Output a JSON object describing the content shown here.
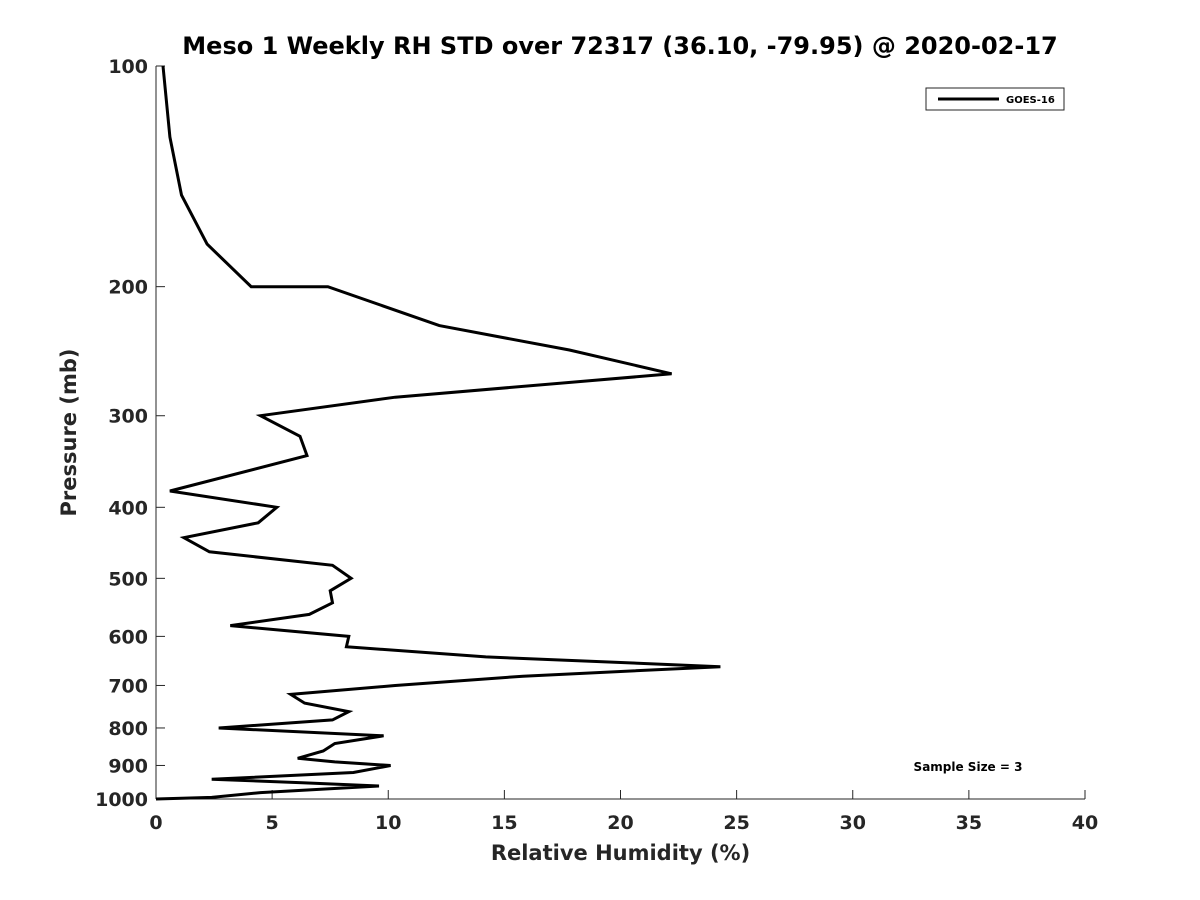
{
  "chart_data": {
    "type": "line",
    "title": "Meso 1 Weekly RH STD over 72317 (36.10, -79.95) @ 2020-02-17",
    "xlabel": "Relative Humidity (%)",
    "ylabel": "Pressure (mb)",
    "xlim": [
      0,
      40
    ],
    "ylim": [
      100,
      1000
    ],
    "y_scale": "log",
    "y_reversed": true,
    "x_ticks": [
      0,
      5,
      10,
      15,
      20,
      25,
      30,
      35,
      40
    ],
    "y_ticks": [
      100,
      200,
      300,
      400,
      500,
      600,
      700,
      800,
      900,
      1000
    ],
    "grid": false,
    "legend_position": "top-right",
    "annotation": "Sample Size = 3",
    "series": [
      {
        "name": "GOES-16",
        "color": "#000000",
        "points": [
          [
            0.3,
            100
          ],
          [
            0.6,
            125
          ],
          [
            1.1,
            150
          ],
          [
            2.2,
            175
          ],
          [
            4.1,
            200
          ],
          [
            7.4,
            200
          ],
          [
            12.2,
            226
          ],
          [
            17.8,
            244
          ],
          [
            22.2,
            263
          ],
          [
            10.3,
            283
          ],
          [
            4.5,
            300
          ],
          [
            6.2,
            320
          ],
          [
            6.5,
            340
          ],
          [
            0.6,
            380
          ],
          [
            5.2,
            400
          ],
          [
            4.4,
            420
          ],
          [
            1.2,
            440
          ],
          [
            2.3,
            460
          ],
          [
            7.6,
            480
          ],
          [
            8.4,
            500
          ],
          [
            7.5,
            520
          ],
          [
            7.6,
            540
          ],
          [
            6.6,
            560
          ],
          [
            3.2,
            580
          ],
          [
            8.3,
            600
          ],
          [
            8.2,
            620
          ],
          [
            14.2,
            640
          ],
          [
            24.3,
            660
          ],
          [
            15.8,
            680
          ],
          [
            10.3,
            700
          ],
          [
            5.8,
            720
          ],
          [
            6.4,
            740
          ],
          [
            8.3,
            760
          ],
          [
            7.6,
            780
          ],
          [
            2.7,
            800
          ],
          [
            9.8,
            820
          ],
          [
            7.7,
            840
          ],
          [
            7.2,
            860
          ],
          [
            6.1,
            880
          ],
          [
            7.7,
            890
          ],
          [
            10.1,
            900
          ],
          [
            8.5,
            920
          ],
          [
            2.4,
            940
          ],
          [
            6.3,
            950
          ],
          [
            9.6,
            960
          ],
          [
            4.5,
            980
          ],
          [
            2.4,
            995
          ],
          [
            0,
            1000
          ]
        ]
      }
    ]
  }
}
